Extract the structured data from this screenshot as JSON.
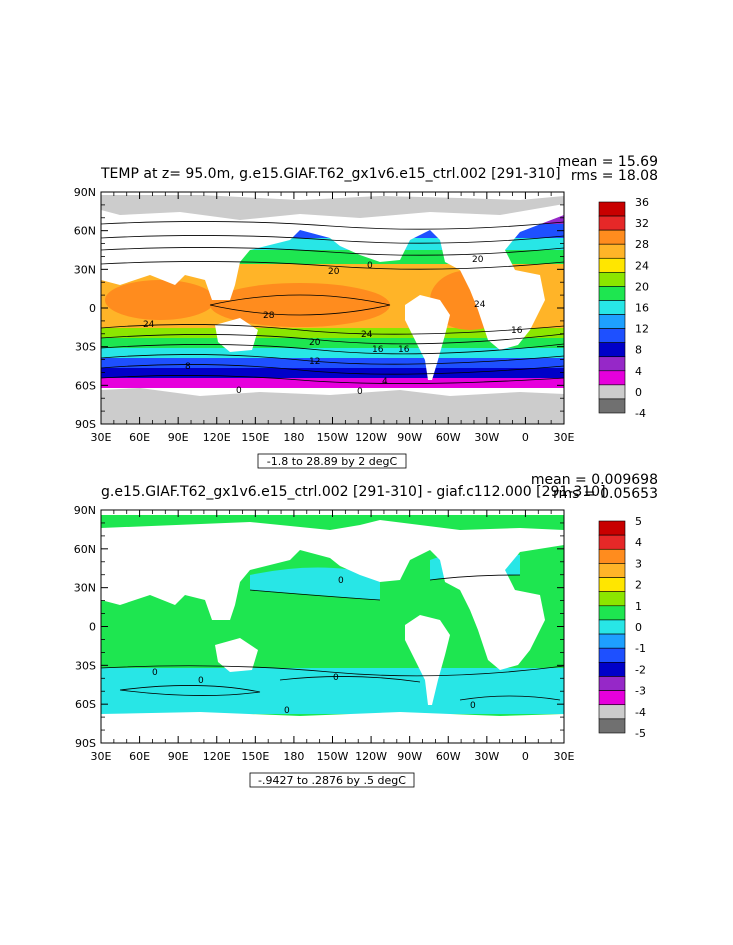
{
  "chart_data": [
    {
      "type": "heatmap",
      "title": "TEMP at z=   95.0m, g.e15.GIAF.T62_gx1v6.e15_ctrl.002 [291-310]",
      "stats": {
        "mean": "mean = 15.69",
        "rms": "rms = 18.08"
      },
      "range_label": "-1.8 to 28.89 by 2 degC",
      "x_ticks": [
        "30E",
        "60E",
        "90E",
        "120E",
        "150E",
        "180",
        "150W",
        "120W",
        "90W",
        "60W",
        "30W",
        "0",
        "30E"
      ],
      "y_ticks": [
        "90N",
        "60N",
        "30N",
        "0",
        "30S",
        "60S",
        "90S"
      ],
      "colorbar": {
        "labels": [
          "36",
          "32",
          "28",
          "24",
          "20",
          "16",
          "12",
          "8",
          "4",
          "0",
          "-4"
        ],
        "colors": [
          "#c80000",
          "#e62828",
          "#ff8c1e",
          "#ffb428",
          "#ffe600",
          "#8ce600",
          "#1ee650",
          "#28e6e6",
          "#1ea0ff",
          "#1e50ff",
          "#0000c8",
          "#9628c8",
          "#e600dc",
          "#cccccc",
          "#707070"
        ]
      },
      "contour_labels": [
        "28",
        "24",
        "24",
        "20",
        "20",
        "20",
        "16",
        "12",
        "8",
        "4",
        "0",
        "0",
        "16",
        "16",
        "24",
        "0"
      ]
    },
    {
      "type": "heatmap",
      "title": "g.e15.GIAF.T62_gx1v6.e15_ctrl.002 [291-310] - giaf.c112.000 [291-310]",
      "stats": {
        "mean": "mean = 0.009698",
        "rms": "rms = 0.05653"
      },
      "range_label": "-.9427 to .2876 by .5 degC",
      "x_ticks": [
        "30E",
        "60E",
        "90E",
        "120E",
        "150E",
        "180",
        "150W",
        "120W",
        "90W",
        "60W",
        "30W",
        "0",
        "30E"
      ],
      "y_ticks": [
        "90N",
        "60N",
        "30N",
        "0",
        "30S",
        "60S",
        "90S"
      ],
      "colorbar": {
        "labels": [
          "5",
          "4",
          "3",
          "2",
          "1",
          "0",
          "-1",
          "-2",
          "-3",
          "-4",
          "-5"
        ],
        "colors": [
          "#c80000",
          "#e62828",
          "#ff8c1e",
          "#ffb428",
          "#ffe600",
          "#8ce600",
          "#1ee650",
          "#28e6e6",
          "#1ea0ff",
          "#1e50ff",
          "#0000c8",
          "#9628c8",
          "#e600dc",
          "#cccccc",
          "#707070"
        ]
      },
      "contour_labels": [
        "0",
        "0",
        "0",
        "0",
        "0",
        "0"
      ]
    }
  ]
}
